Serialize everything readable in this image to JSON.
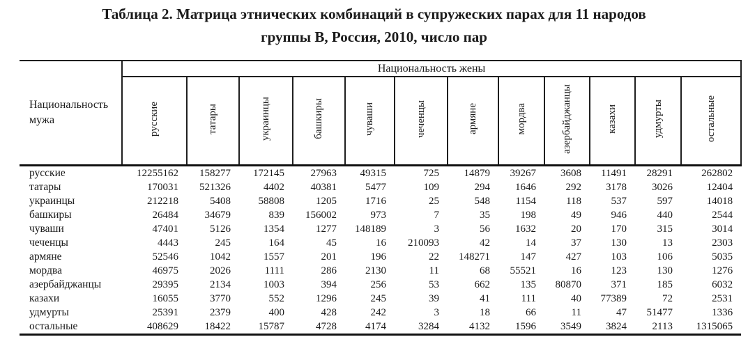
{
  "title": {
    "line1": "Таблица 2. Матрица этнических комбинаций в супружеских парах для 11 народов",
    "line2": "группы В, Россия, 2010, число пар"
  },
  "table": {
    "husband_header": "Национальность мужа",
    "wife_header": "Национальность жены",
    "columns": [
      "русские",
      "татары",
      "украинцы",
      "башкиры",
      "чуваши",
      "чеченцы",
      "армяне",
      "мордва",
      "азербайджанцы",
      "казахи",
      "удмурты",
      "остальные"
    ],
    "rows": [
      {
        "label": "русские",
        "values": [
          12255162,
          158277,
          172145,
          27963,
          49315,
          725,
          14879,
          39267,
          3608,
          11491,
          28291,
          262802
        ]
      },
      {
        "label": "татары",
        "values": [
          170031,
          521326,
          4402,
          40381,
          5477,
          109,
          294,
          1646,
          292,
          3178,
          3026,
          12404
        ]
      },
      {
        "label": "украинцы",
        "values": [
          212218,
          5408,
          58808,
          1205,
          1716,
          25,
          548,
          1154,
          118,
          537,
          597,
          14018
        ]
      },
      {
        "label": "башкиры",
        "values": [
          26484,
          34679,
          839,
          156002,
          973,
          7,
          35,
          198,
          49,
          946,
          440,
          2544
        ]
      },
      {
        "label": "чуваши",
        "values": [
          47401,
          5126,
          1354,
          1277,
          148189,
          3,
          56,
          1632,
          20,
          170,
          315,
          3014
        ]
      },
      {
        "label": "чеченцы",
        "values": [
          4443,
          245,
          164,
          45,
          16,
          210093,
          42,
          14,
          37,
          130,
          13,
          2303
        ]
      },
      {
        "label": "армяне",
        "values": [
          52546,
          1042,
          1557,
          201,
          196,
          22,
          148271,
          147,
          427,
          103,
          106,
          5035
        ]
      },
      {
        "label": "мордва",
        "values": [
          46975,
          2026,
          1111,
          286,
          2130,
          11,
          68,
          55521,
          16,
          123,
          130,
          1276
        ]
      },
      {
        "label": "азербайджанцы",
        "values": [
          29395,
          2134,
          1003,
          394,
          256,
          53,
          662,
          135,
          80870,
          371,
          185,
          6032
        ]
      },
      {
        "label": "казахи",
        "values": [
          16055,
          3770,
          552,
          1296,
          245,
          39,
          41,
          111,
          40,
          77389,
          72,
          2531
        ]
      },
      {
        "label": "удмурты",
        "values": [
          25391,
          2379,
          400,
          428,
          242,
          3,
          18,
          66,
          11,
          47,
          51477,
          1336
        ]
      },
      {
        "label": "остальные",
        "values": [
          408629,
          18422,
          15787,
          4728,
          4174,
          3284,
          4132,
          1596,
          3549,
          3824,
          2113,
          1315065
        ]
      }
    ]
  },
  "colors": {
    "background": "#ffffff",
    "text": "#1a1a1a",
    "border": "#1f1f1f"
  }
}
